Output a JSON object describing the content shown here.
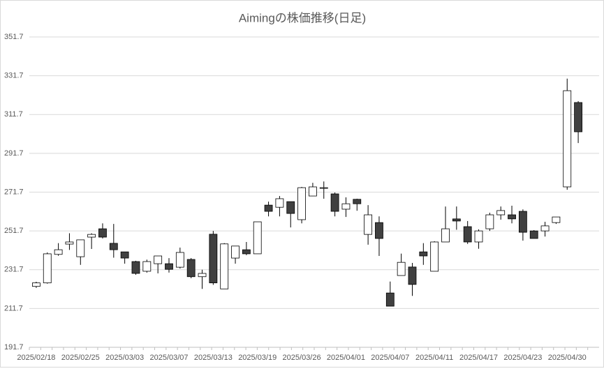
{
  "chart_data": {
    "type": "candlestick",
    "title": "Aimingの株価推移(日足)",
    "categories": [
      "2025/02/18",
      null,
      null,
      null,
      "2025/02/25",
      null,
      null,
      null,
      "2025/03/03",
      null,
      null,
      null,
      "2025/03/07",
      null,
      null,
      null,
      "2025/03/13",
      null,
      null,
      null,
      "2025/03/19",
      null,
      null,
      null,
      "2025/03/26",
      null,
      null,
      null,
      "2025/04/01",
      null,
      null,
      null,
      "2025/04/07",
      null,
      null,
      null,
      "2025/04/11",
      null,
      null,
      null,
      "2025/04/17",
      null,
      null,
      null,
      "2025/04/23",
      null,
      null,
      null,
      "2025/04/30",
      null
    ],
    "open": [
      223.1,
      224.9,
      239.6,
      244.9,
      238.4,
      248.5,
      252.8,
      245.3,
      240.9,
      235.9,
      230.9,
      234.8,
      234.8,
      233.0,
      237.0,
      228.1,
      250.0,
      221.8,
      237.7,
      242.0,
      239.9,
      265.0,
      263.9,
      266.8,
      257.5,
      269.7,
      273.7,
      270.8,
      262.9,
      268.0,
      249.9,
      256.0,
      219.7,
      228.7,
      233.1,
      240.9,
      230.9,
      246.0,
      257.9,
      253.9,
      246.0,
      252.8,
      260.0,
      260.0,
      261.8,
      251.7,
      251.7,
      256.0,
      274.4,
      317.9
    ],
    "high": [
      225.5,
      240.6,
      245.4,
      250.5,
      247.1,
      250.5,
      255.6,
      255.3,
      240.9,
      236.3,
      236.9,
      238.8,
      237.7,
      243.1,
      237.7,
      231.7,
      251.7,
      245.4,
      243.9,
      246.0,
      256.4,
      266.8,
      269.7,
      266.8,
      274.4,
      276.5,
      277.2,
      271.5,
      269.0,
      268.3,
      265.0,
      259.2,
      225.6,
      240.0,
      235.2,
      245.4,
      246.4,
      264.3,
      264.3,
      256.8,
      252.5,
      261.1,
      264.3,
      264.7,
      262.8,
      252.1,
      256.4,
      258.9,
      330.2,
      318.6
    ],
    "low": [
      222.3,
      224.5,
      238.9,
      241.9,
      234.2,
      242.4,
      247.8,
      237.9,
      234.8,
      229.1,
      230.2,
      229.8,
      230.2,
      232.3,
      227.3,
      221.8,
      223.9,
      221.8,
      234.8,
      239.2,
      239.9,
      259.2,
      259.2,
      253.5,
      255.6,
      269.7,
      268.3,
      259.2,
      258.9,
      262.1,
      244.6,
      238.8,
      212.9,
      228.7,
      218.2,
      234.2,
      230.9,
      246.0,
      252.3,
      245.0,
      242.5,
      251.7,
      257.5,
      255.6,
      246.7,
      247.8,
      248.8,
      255.3,
      272.9,
      297.0
    ],
    "close": [
      224.9,
      239.9,
      242.0,
      246.0,
      247.1,
      249.9,
      248.5,
      242.0,
      237.7,
      229.8,
      235.9,
      238.8,
      231.9,
      240.6,
      228.1,
      229.8,
      224.9,
      245.0,
      243.9,
      239.9,
      256.4,
      261.8,
      268.3,
      260.7,
      274.0,
      274.4,
      274.0,
      261.8,
      265.7,
      265.7,
      260.0,
      247.8,
      212.9,
      235.5,
      224.1,
      238.8,
      246.0,
      252.8,
      256.8,
      246.0,
      251.7,
      260.0,
      262.2,
      257.9,
      251.0,
      247.8,
      254.3,
      258.9,
      324.0,
      302.8
    ],
    "up_color": "#ffffff",
    "down_color": "#404040",
    "ylim": [
      191.7,
      351.7
    ],
    "yticks": [
      191.7,
      211.7,
      231.7,
      251.7,
      271.7,
      291.7,
      311.7,
      331.7,
      351.7
    ],
    "grid": true
  }
}
